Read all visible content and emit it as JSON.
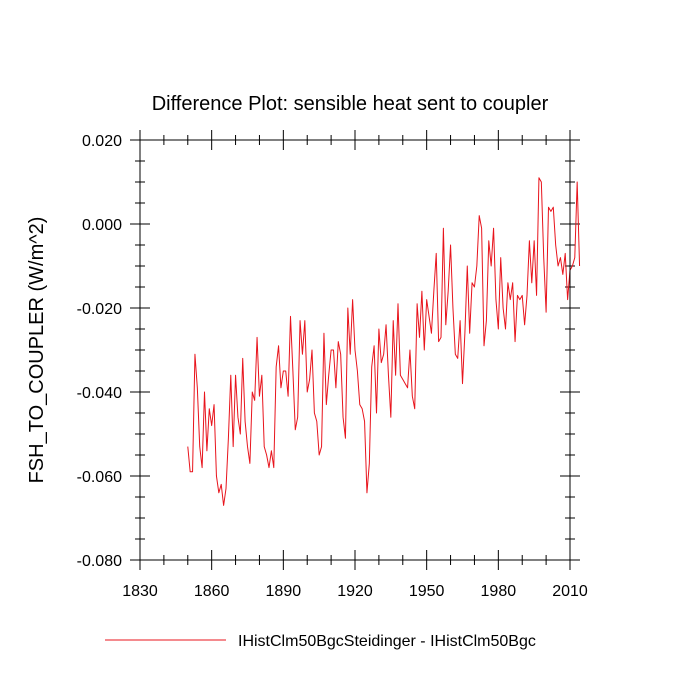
{
  "chart_data": {
    "type": "line",
    "title": "Difference Plot: sensible heat sent to coupler",
    "ylabel": "FSH_TO_COUPLER  (W/m^2)",
    "xlabel": "",
    "xlim": [
      1830,
      2010
    ],
    "ylim": [
      -0.08,
      0.02
    ],
    "x_ticks": [
      1830,
      1860,
      1890,
      1920,
      1950,
      1980,
      2010
    ],
    "x_tick_labels": [
      "1830",
      "1860",
      "1890",
      "1920",
      "1950",
      "1980",
      "2010"
    ],
    "y_ticks": [
      -0.08,
      -0.06,
      -0.04,
      -0.02,
      0.0,
      0.02
    ],
    "y_tick_labels": [
      "-0.080",
      "-0.060",
      "-0.040",
      "-0.020",
      "0.000",
      "0.020"
    ],
    "legend_position": "bottom",
    "series": [
      {
        "name": "IHistClm50BgcSteidinger - IHistClm50Bgc",
        "color": "#e8141c",
        "x_start": 1850,
        "x_step": 1,
        "values": [
          -0.053,
          -0.059,
          -0.059,
          -0.031,
          -0.039,
          -0.053,
          -0.058,
          -0.04,
          -0.054,
          -0.044,
          -0.048,
          -0.043,
          -0.06,
          -0.064,
          -0.062,
          -0.067,
          -0.063,
          -0.051,
          -0.036,
          -0.053,
          -0.036,
          -0.046,
          -0.05,
          -0.032,
          -0.047,
          -0.053,
          -0.057,
          -0.04,
          -0.042,
          -0.027,
          -0.041,
          -0.036,
          -0.053,
          -0.055,
          -0.058,
          -0.054,
          -0.058,
          -0.034,
          -0.029,
          -0.039,
          -0.035,
          -0.035,
          -0.041,
          -0.022,
          -0.035,
          -0.049,
          -0.046,
          -0.023,
          -0.031,
          -0.023,
          -0.04,
          -0.037,
          -0.03,
          -0.045,
          -0.047,
          -0.055,
          -0.053,
          -0.026,
          -0.043,
          -0.036,
          -0.03,
          -0.03,
          -0.039,
          -0.028,
          -0.031,
          -0.046,
          -0.051,
          -0.02,
          -0.031,
          -0.018,
          -0.03,
          -0.035,
          -0.043,
          -0.044,
          -0.047,
          -0.064,
          -0.057,
          -0.034,
          -0.029,
          -0.045,
          -0.025,
          -0.033,
          -0.031,
          -0.024,
          -0.036,
          -0.046,
          -0.023,
          -0.036,
          -0.019,
          -0.036,
          -0.037,
          -0.038,
          -0.039,
          -0.03,
          -0.041,
          -0.044,
          -0.019,
          -0.027,
          -0.016,
          -0.03,
          -0.018,
          -0.022,
          -0.026,
          -0.016,
          -0.007,
          -0.028,
          -0.027,
          -0.001,
          -0.024,
          -0.016,
          -0.005,
          -0.02,
          -0.031,
          -0.032,
          -0.023,
          -0.038,
          -0.026,
          -0.01,
          -0.026,
          -0.014,
          -0.015,
          -0.01,
          0.002,
          -0.001,
          -0.029,
          -0.023,
          -0.004,
          -0.01,
          -0.001,
          -0.018,
          -0.025,
          -0.008,
          -0.02,
          -0.025,
          -0.014,
          -0.018,
          -0.014,
          -0.028,
          -0.017,
          -0.018,
          -0.017,
          -0.024,
          -0.017,
          -0.004,
          -0.014,
          -0.004,
          -0.017,
          0.011,
          0.01,
          -0.008,
          -0.021,
          0.004,
          0.003,
          0.004,
          -0.005,
          -0.01,
          -0.008,
          -0.012,
          -0.007,
          -0.018,
          -0.011,
          -0.01,
          -0.008,
          0.01,
          -0.01
        ]
      }
    ]
  },
  "legend": {
    "label": "IHistClm50BgcSteidinger - IHistClm50Bgc"
  }
}
